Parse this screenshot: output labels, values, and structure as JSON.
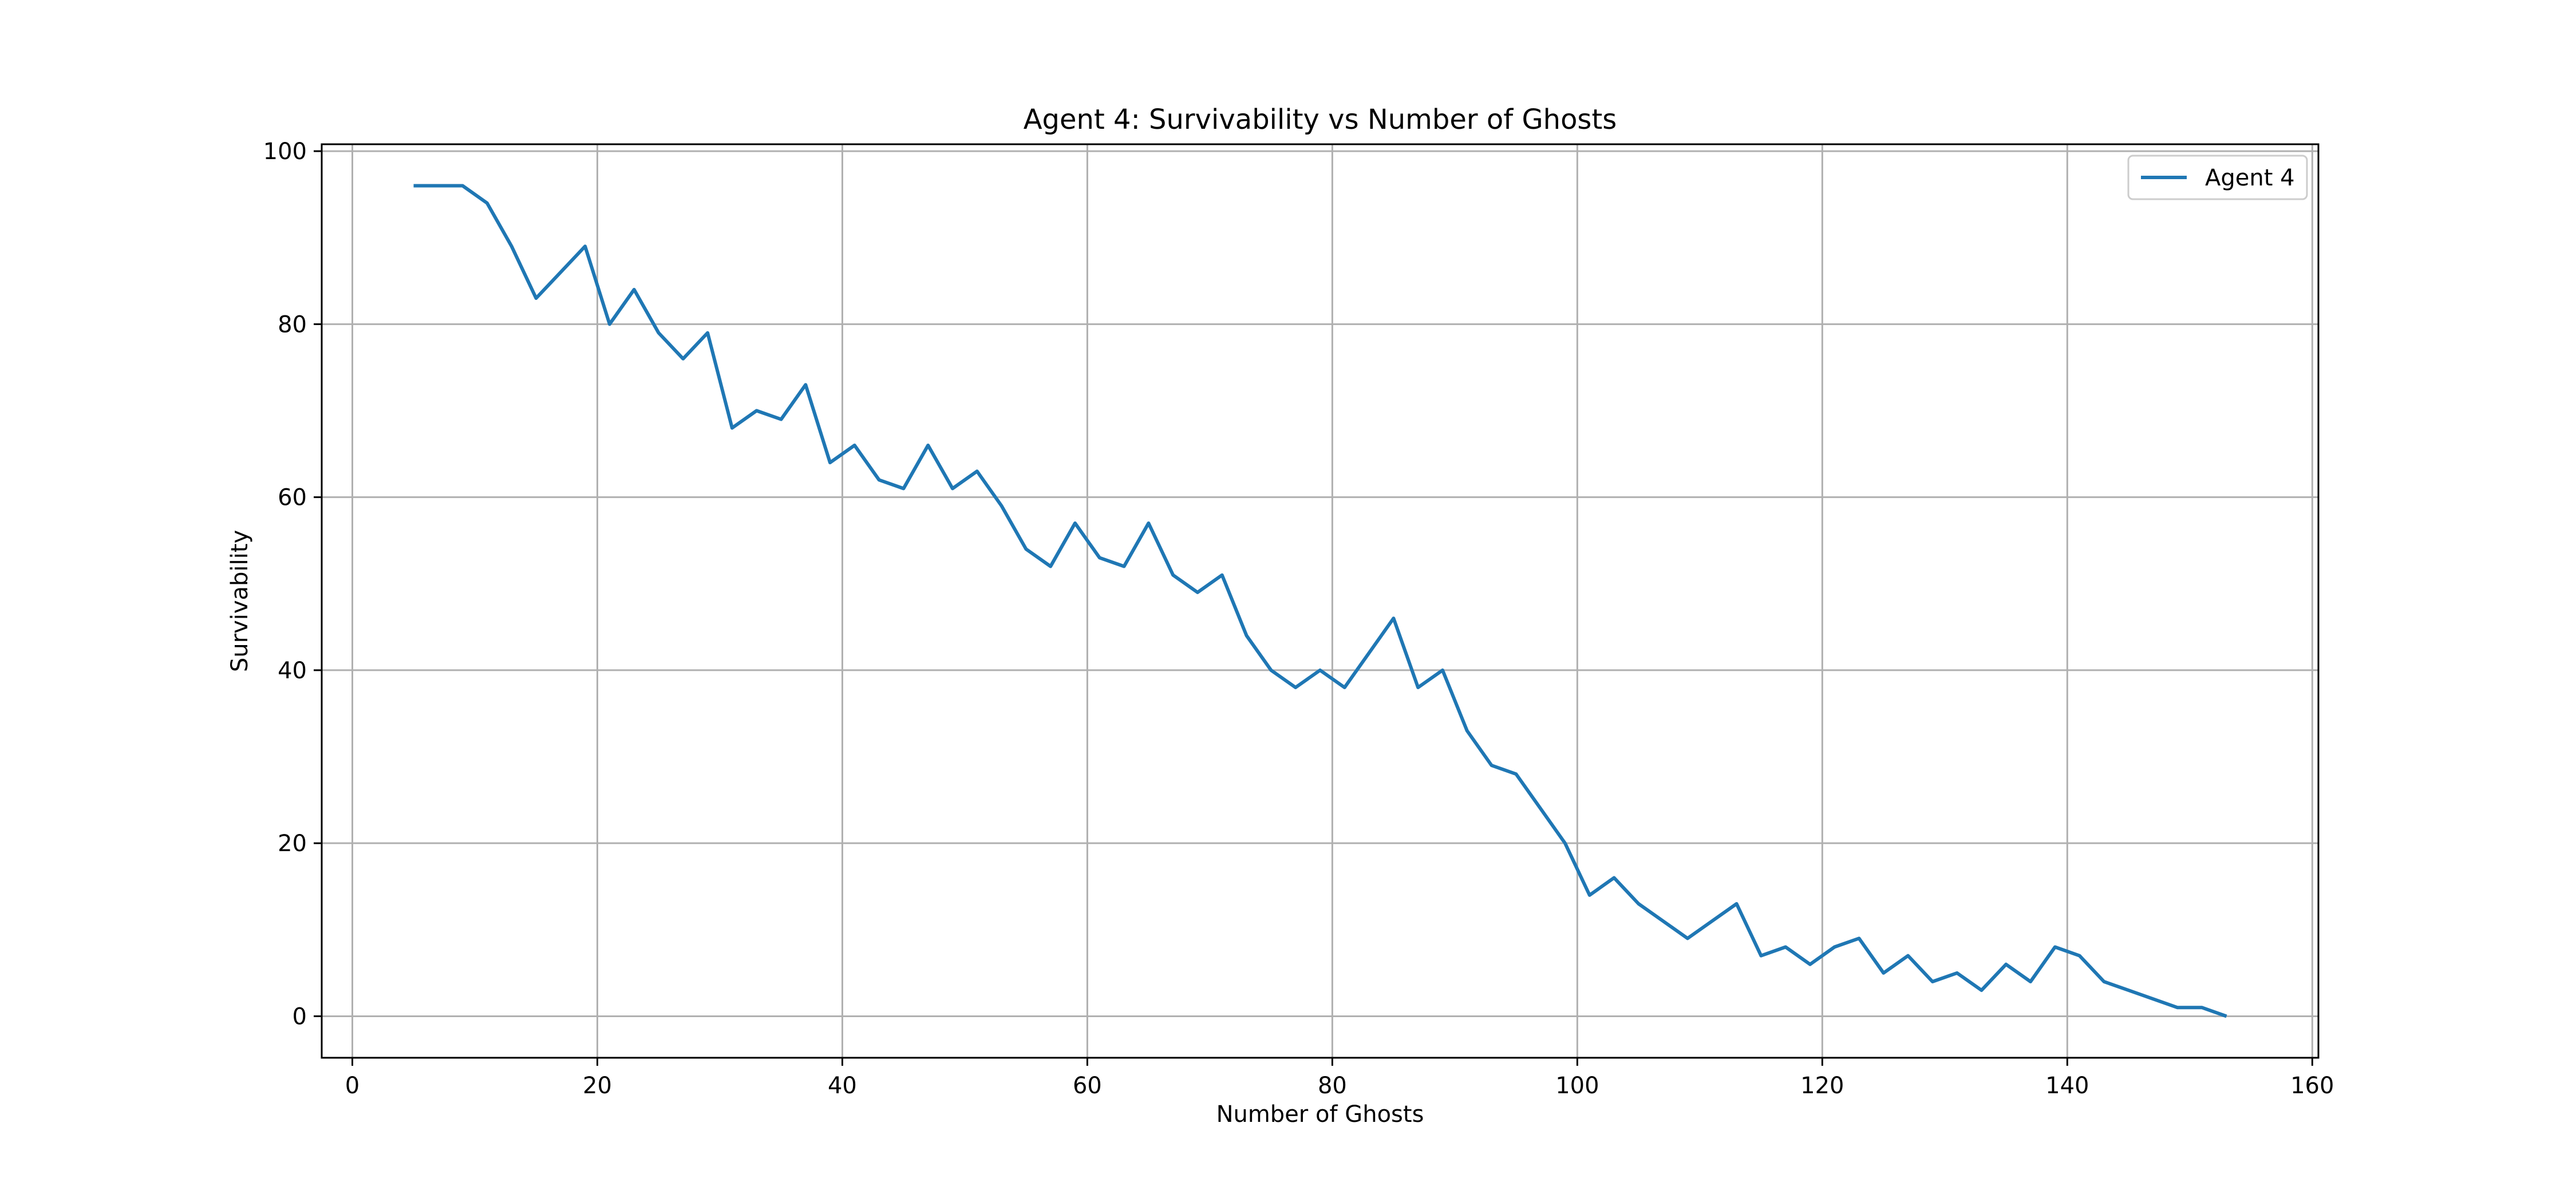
{
  "chart_data": {
    "type": "line",
    "title": "Agent 4: Survivability vs Number of Ghosts",
    "xlabel": "Number of Ghosts",
    "ylabel": "Survivability",
    "xlim": [
      -2.5,
      160.5
    ],
    "ylim": [
      -4.8,
      100.8
    ],
    "xticks": [
      0,
      20,
      40,
      60,
      80,
      100,
      120,
      140,
      160
    ],
    "yticks": [
      0,
      20,
      40,
      60,
      80,
      100
    ],
    "xtick_labels": [
      "0",
      "20",
      "40",
      "60",
      "80",
      "100",
      "120",
      "140",
      "160"
    ],
    "ytick_labels": [
      "0",
      "20",
      "40",
      "60",
      "80",
      "100"
    ],
    "grid": true,
    "legend_position": "top-right",
    "series": [
      {
        "name": "Agent 4",
        "color": "#1f77b4",
        "x": [
          5,
          7,
          9,
          11,
          13,
          15,
          17,
          19,
          21,
          23,
          25,
          27,
          29,
          31,
          33,
          35,
          37,
          39,
          41,
          43,
          45,
          47,
          49,
          51,
          53,
          55,
          57,
          59,
          61,
          63,
          65,
          67,
          69,
          71,
          73,
          75,
          77,
          79,
          81,
          83,
          85,
          87,
          89,
          91,
          93,
          95,
          97,
          99,
          101,
          103,
          105,
          107,
          109,
          111,
          113,
          115,
          117,
          119,
          121,
          123,
          125,
          127,
          129,
          131,
          133,
          135,
          137,
          139,
          141,
          143,
          145,
          147,
          149,
          151,
          153
        ],
        "y": [
          96,
          96,
          96,
          94,
          89,
          83,
          86,
          89,
          80,
          84,
          79,
          76,
          79,
          68,
          70,
          69,
          73,
          64,
          66,
          62,
          61,
          66,
          61,
          63,
          59,
          54,
          52,
          57,
          53,
          52,
          57,
          51,
          49,
          51,
          44,
          40,
          38,
          40,
          38,
          42,
          46,
          38,
          40,
          33,
          29,
          28,
          24,
          20,
          14,
          16,
          13,
          11,
          9,
          11,
          13,
          7,
          8,
          6,
          8,
          9,
          5,
          7,
          4,
          5,
          3,
          6,
          4,
          8,
          7,
          4,
          3,
          2,
          1,
          1,
          0
        ]
      }
    ]
  }
}
